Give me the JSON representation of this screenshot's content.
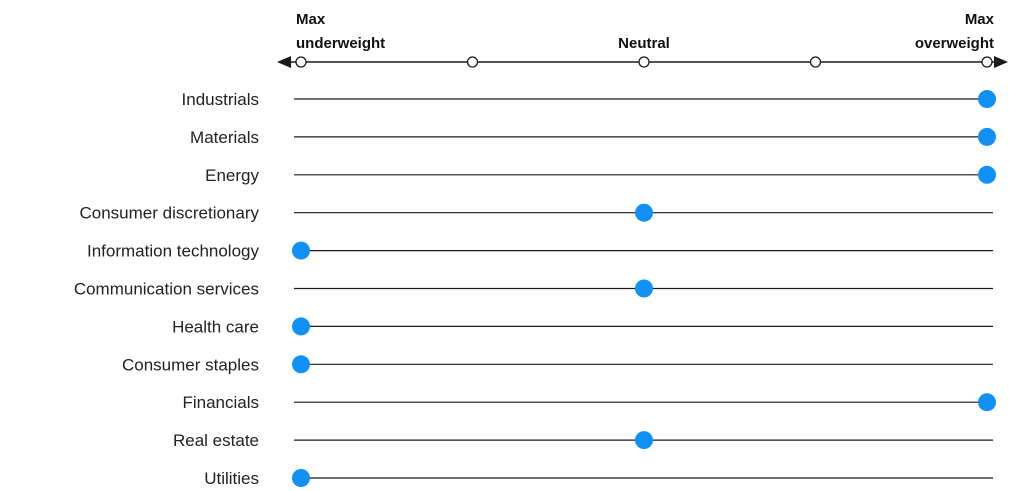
{
  "chart_data": {
    "type": "dot-scale",
    "scale": {
      "left_label": [
        "Max",
        "underweight"
      ],
      "center_label": "Neutral",
      "right_label": [
        "Max",
        "overweight"
      ],
      "steps": 5
    },
    "categories": [
      "Industrials",
      "Materials",
      "Energy",
      "Consumer discretionary",
      "Information technology",
      "Communication services",
      "Health care",
      "Consumer staples",
      "Financials",
      "Real estate",
      "Utilities"
    ],
    "values": [
      4,
      4,
      4,
      2,
      0,
      2,
      0,
      0,
      4,
      2,
      0
    ],
    "colors": {
      "dot": "#1190f5",
      "line": "#1a1a1a",
      "text": "#222222"
    }
  }
}
